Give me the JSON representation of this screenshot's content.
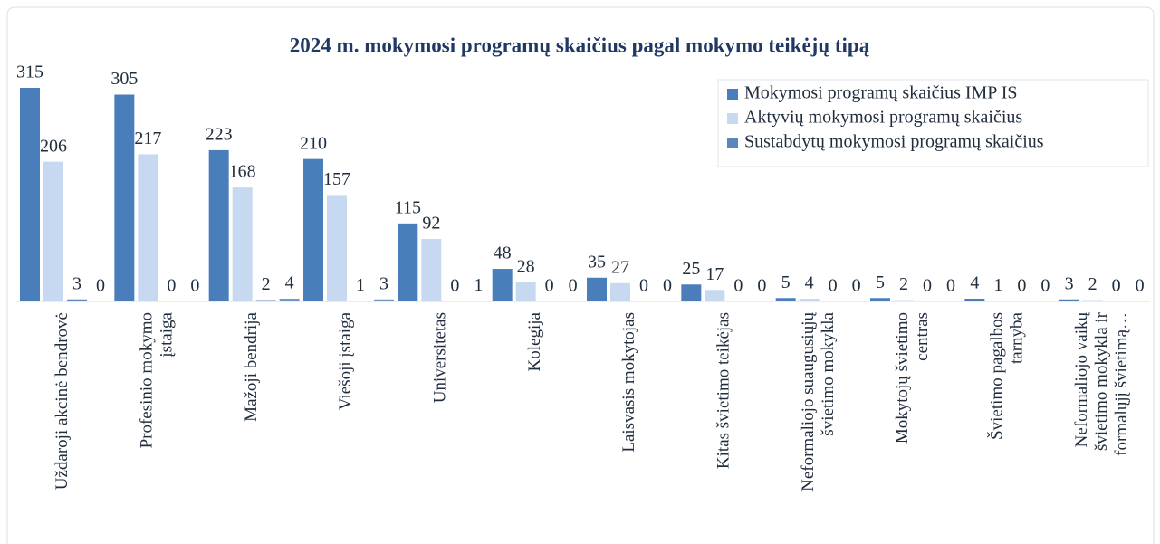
{
  "chart_data": {
    "type": "bar",
    "title": "2024 m. mokymosi programų skaičius pagal mokymo teikėjų tipą",
    "categories": [
      "Uždaroji akcinė bendrovė",
      "Profesinio mokymo įstaiga",
      "Mažoji bendrija",
      "Viešoji įstaiga",
      "Universitetas",
      "Kolegija",
      "Laisvasis mokytojas",
      "Kitas švietimo teikėjas",
      "Neformaliojo suaugusiųjų švietimo mokykla",
      "Mokytojų švietimo centras",
      "Švietimo pagalbos tarnyba",
      "Neformaliojo vaikų švietimo mokykla ir formalųjį švietimą…"
    ],
    "series": [
      {
        "name": "Mokymosi programų skaičius IMP IS",
        "color": "#4a7ebb",
        "values": [
          315,
          305,
          223,
          210,
          115,
          48,
          35,
          25,
          5,
          5,
          4,
          3
        ]
      },
      {
        "name": "Aktyvių mokymosi programų skaičius",
        "color": "#c6d9f1",
        "values": [
          206,
          217,
          168,
          157,
          92,
          28,
          27,
          17,
          4,
          2,
          1,
          2
        ]
      },
      {
        "name": "Sustabdytų mokymosi programų skaičius",
        "color": "#5a86bf",
        "values": [
          3,
          0,
          2,
          1,
          0,
          0,
          0,
          0,
          0,
          0,
          0,
          0
        ]
      },
      {
        "color": "#6f96c8",
        "values": [
          0,
          0,
          4,
          3,
          1,
          0,
          0,
          0,
          0,
          0,
          0,
          0
        ]
      }
    ],
    "legend": "top-right"
  }
}
